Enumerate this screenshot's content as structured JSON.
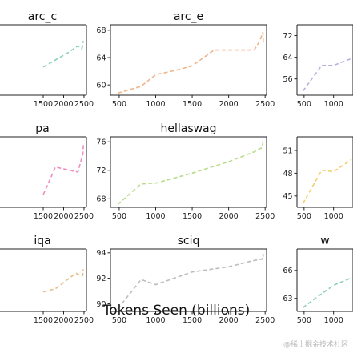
{
  "figure": {
    "xlabel": "Tokens Seen (billions)",
    "watermark": "@稀土掘金技术社区"
  },
  "chart_data": [
    {
      "type": "line",
      "title": "arc_c",
      "color": "#8fd0b8",
      "xticks": [
        1500,
        2000,
        2500
      ],
      "yticks": [],
      "xlim": [
        400,
        2560
      ],
      "ylim": [
        36,
        46
      ],
      "x": [
        1500,
        1800,
        2100,
        2350,
        2440,
        2460,
        2470,
        2480
      ],
      "y": [
        40,
        41,
        42,
        43,
        42.6,
        42.8,
        43.1,
        43.7
      ]
    },
    {
      "type": "line",
      "title": "arc_e",
      "color": "#f0b48a",
      "xticks": [
        500,
        1000,
        1500,
        2000,
        2500
      ],
      "yticks": [
        60,
        64,
        68
      ],
      "xlim": [
        380,
        2520
      ],
      "ylim": [
        58.5,
        68.8
      ],
      "x": [
        480,
        800,
        1000,
        1300,
        1500,
        1800,
        2350,
        2430,
        2460,
        2470,
        2475
      ],
      "y": [
        58.8,
        59.8,
        61.5,
        62.2,
        62.8,
        65.1,
        65.1,
        66.5,
        67.4,
        67.7,
        66.0
      ]
    },
    {
      "type": "line",
      "title": "",
      "color": "#b6b1dc",
      "xticks": [
        500,
        1000
      ],
      "yticks": [
        56,
        64,
        72
      ],
      "xlim": [
        380,
        1330
      ],
      "ylim": [
        50,
        76
      ],
      "x": [
        480,
        800,
        1000,
        1300
      ],
      "y": [
        51.5,
        61.0,
        61.0,
        63.5
      ]
    },
    {
      "type": "line",
      "title": "pa",
      "color": "#ef8fbf",
      "xticks": [
        1500,
        2000,
        2500
      ],
      "yticks": [],
      "xlim": [
        400,
        2560
      ],
      "ylim": [
        66,
        80
      ],
      "x": [
        1500,
        1800,
        2350,
        2470,
        2490
      ],
      "y": [
        68.5,
        74.0,
        73.0,
        76.5,
        78.8
      ]
    },
    {
      "type": "line",
      "title": "hellaswag",
      "color": "#b9dc8b",
      "xticks": [
        500,
        1000,
        1500,
        2000,
        2500
      ],
      "yticks": [
        68,
        72,
        76
      ],
      "xlim": [
        380,
        2520
      ],
      "ylim": [
        66.8,
        76.7
      ],
      "x": [
        480,
        800,
        1000,
        1500,
        2000,
        2350,
        2460,
        2470,
        2480
      ],
      "y": [
        67.2,
        70.1,
        70.2,
        71.6,
        73.2,
        74.6,
        75.2,
        75.9,
        76.3
      ]
    },
    {
      "type": "line",
      "title": "",
      "color": "#f2d06b",
      "xticks": [
        500,
        1000
      ],
      "yticks": [
        45,
        48,
        51
      ],
      "xlim": [
        380,
        1330
      ],
      "ylim": [
        43.5,
        52.8
      ],
      "x": [
        480,
        800,
        1000,
        1300
      ],
      "y": [
        44.0,
        48.4,
        48.2,
        49.8
      ]
    },
    {
      "type": "line",
      "title": "iqa",
      "color": "#e2c189",
      "xticks": [
        1500,
        2000,
        2500
      ],
      "yticks": [],
      "xlim": [
        400,
        2560
      ],
      "ylim": [
        74,
        82
      ],
      "x": [
        1500,
        1800,
        2300,
        2440,
        2470,
        2480
      ],
      "y": [
        76.5,
        76.9,
        78.9,
        78.5,
        78.6,
        79.4
      ]
    },
    {
      "type": "line",
      "title": "sciq",
      "color": "#bdbdbd",
      "xticks": [
        500,
        1000,
        1500,
        2000,
        2500
      ],
      "yticks": [
        90,
        92,
        94
      ],
      "xlim": [
        380,
        2520
      ],
      "ylim": [
        89.4,
        94.3
      ],
      "x": [
        480,
        800,
        1000,
        1500,
        2000,
        2350,
        2460,
        2470,
        2480
      ],
      "y": [
        89.6,
        91.9,
        91.5,
        92.5,
        92.9,
        93.4,
        93.5,
        93.9,
        93.6
      ]
    },
    {
      "type": "line",
      "title": "w",
      "color": "#8fd0b8",
      "xticks": [
        500,
        1000
      ],
      "yticks": [
        63,
        66
      ],
      "xlim": [
        380,
        1330
      ],
      "ylim": [
        61.6,
        68.3
      ],
      "x": [
        480,
        800,
        1000,
        1300
      ],
      "y": [
        62.0,
        63.5,
        64.4,
        65.2
      ]
    }
  ]
}
